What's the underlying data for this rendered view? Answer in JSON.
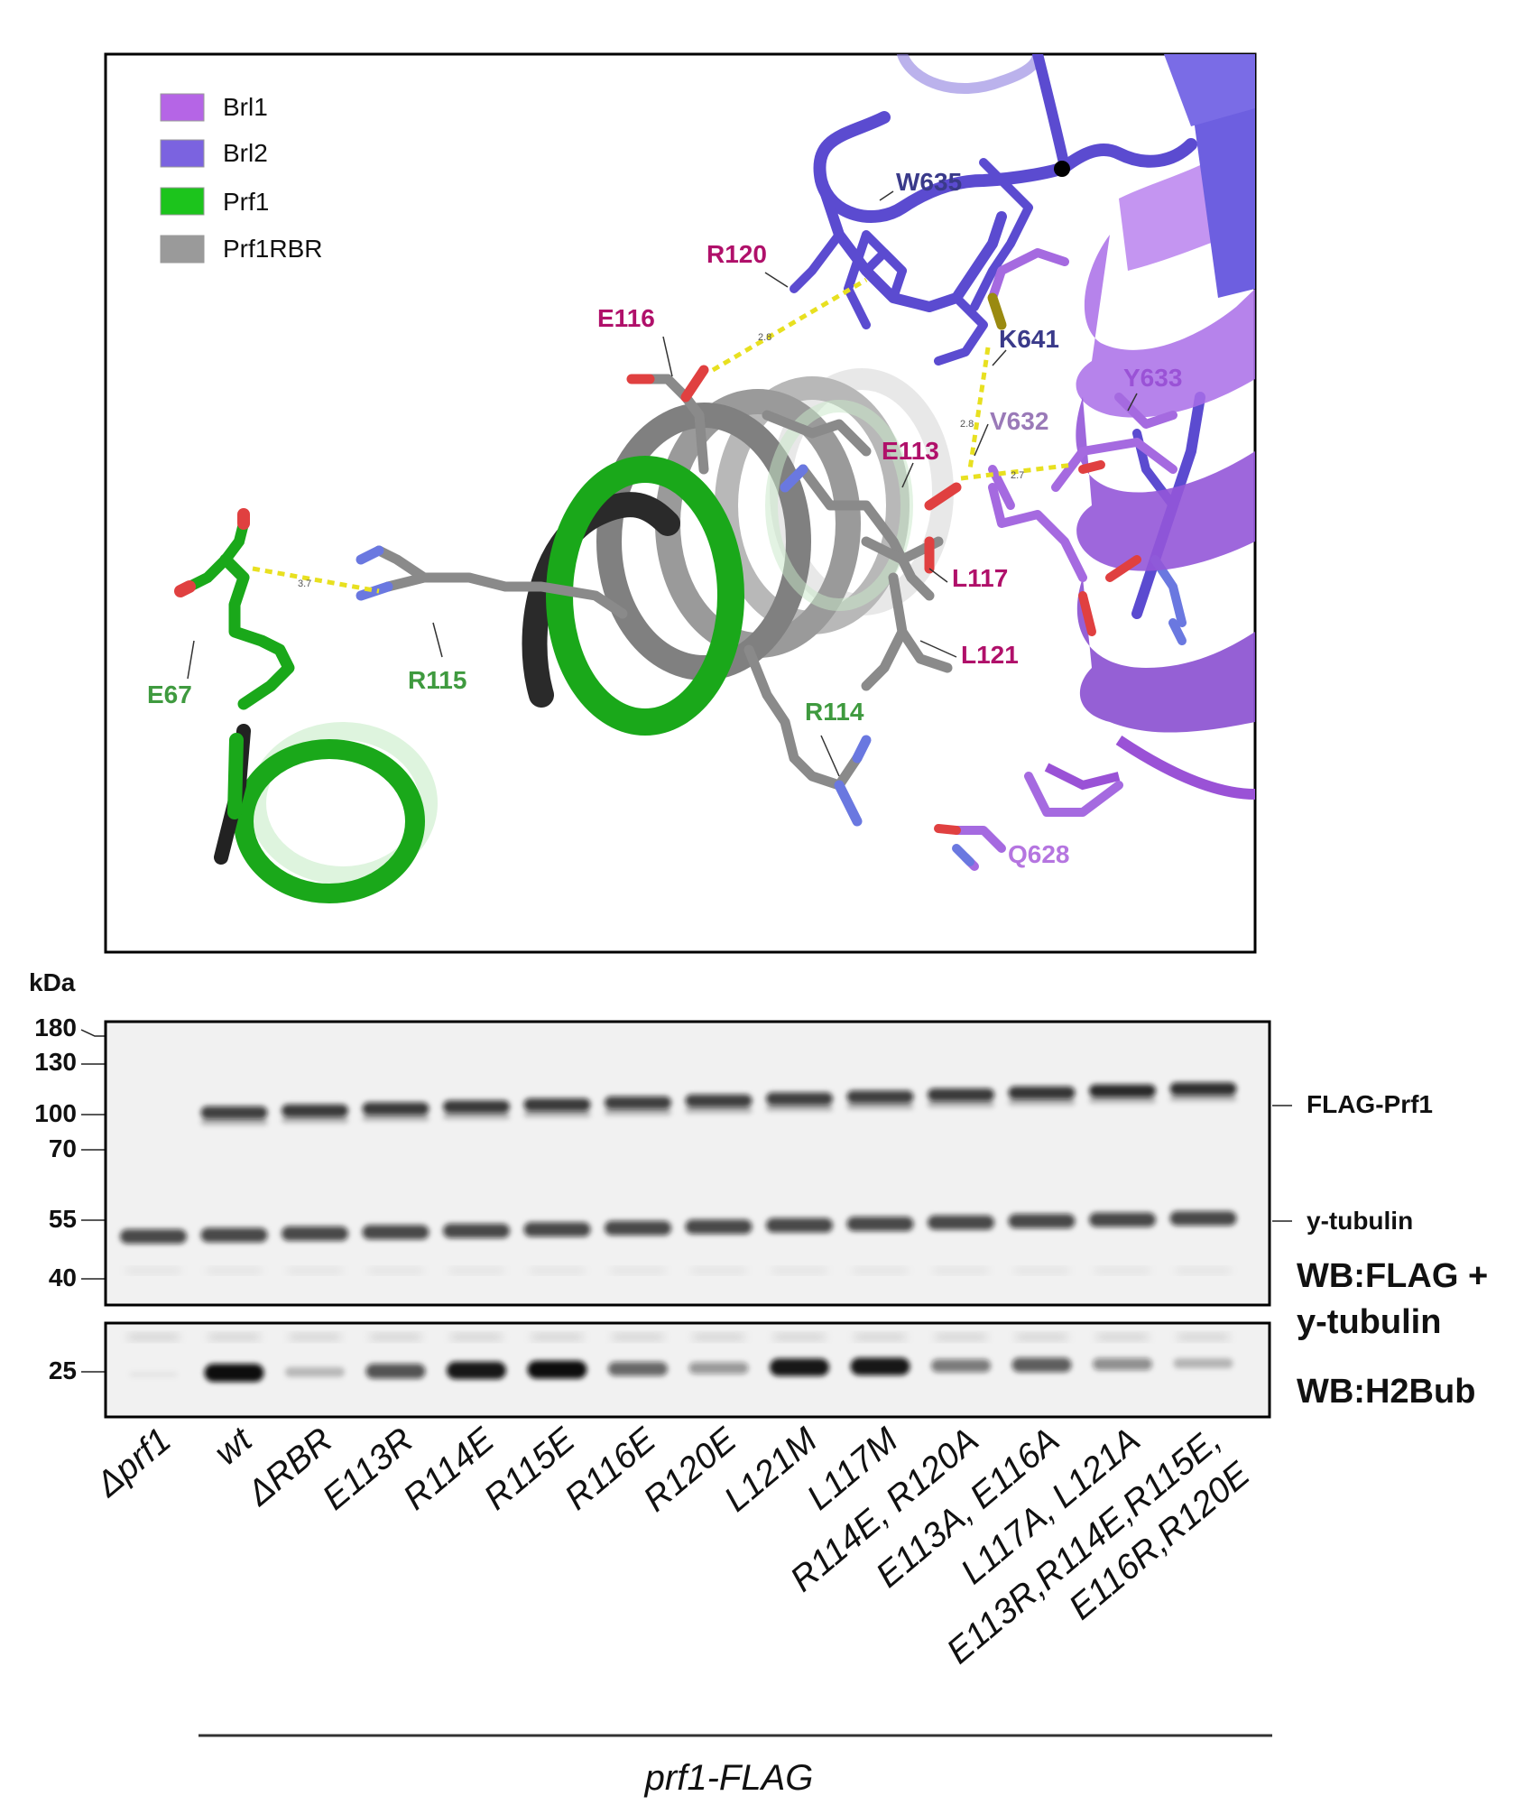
{
  "structure_panel": {
    "legend": [
      {
        "label": "Brl1",
        "color": "#b565e6"
      },
      {
        "label": "Brl2",
        "color": "#7b63e0"
      },
      {
        "label": "Prf1",
        "color": "#1cc41c"
      },
      {
        "label": "Prf1RBR",
        "color": "#9a9a9a"
      }
    ],
    "residues": {
      "w635": "W635",
      "r120": "R120",
      "e116": "E116",
      "k641": "K641",
      "y633": "Y633",
      "v632": "V632",
      "e113": "E113",
      "l117": "L117",
      "l121": "L121",
      "r114": "R114",
      "r115": "R115",
      "e67": "E67",
      "q628": "Q628"
    },
    "distances": {
      "d1": "2.8",
      "d2": "2.8",
      "d3": "2.7",
      "d4": "3.7"
    },
    "colors": {
      "brl1": "#9a52d6",
      "brl2": "#5b4bd0",
      "prf1": "#1aa81a",
      "rbr": "#8c8c8c",
      "magenta_label": "#b0106a",
      "green_label": "#3f9a3f",
      "hbond": "#e8e020"
    }
  },
  "blot": {
    "kda_label": "kDa",
    "markers": [
      "180",
      "130",
      "100",
      "70",
      "55",
      "40",
      "25"
    ],
    "band_labels": {
      "flag": "FLAG-Prf1",
      "tubulin": "y-tubulin"
    },
    "wb_labels": {
      "main_line1": "WB:FLAG +",
      "main_line2": "y-tubulin",
      "h2bub": "WB:H2Bub"
    },
    "lanes": [
      {
        "label": "Δprf1",
        "flag": 0.0,
        "h2b": 0.0
      },
      {
        "label": "wt",
        "flag": 0.75,
        "h2b": 1.0
      },
      {
        "label": "ΔRBR",
        "flag": 0.8,
        "h2b": 0.1
      },
      {
        "label": "E113R",
        "flag": 0.8,
        "h2b": 0.65
      },
      {
        "label": "R114E",
        "flag": 0.8,
        "h2b": 0.95
      },
      {
        "label": "R115E",
        "flag": 0.8,
        "h2b": 1.0
      },
      {
        "label": "R116E",
        "flag": 0.75,
        "h2b": 0.55
      },
      {
        "label": "R120E",
        "flag": 0.75,
        "h2b": 0.3
      },
      {
        "label": "L121M",
        "flag": 0.75,
        "h2b": 0.95
      },
      {
        "label": "L117M",
        "flag": 0.75,
        "h2b": 0.95
      },
      {
        "label": "R114E, R120A",
        "flag": 0.8,
        "h2b": 0.45
      },
      {
        "label": "E113A, E116A",
        "flag": 0.85,
        "h2b": 0.6
      },
      {
        "label": "L117A, L121A",
        "flag": 0.95,
        "h2b": 0.35
      },
      {
        "label": "E113R,R114E,R115E,",
        "label2": "E116R,R120E",
        "flag": 0.9,
        "h2b": 0.12
      }
    ],
    "group_label": "prf1-FLAG"
  }
}
